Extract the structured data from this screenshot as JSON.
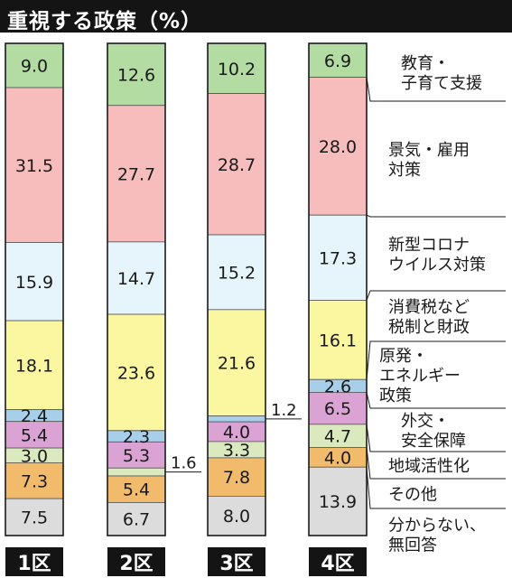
{
  "title": "重視する政策（%）",
  "chart_data": {
    "type": "bar",
    "stacked": true,
    "orientation": "vertical",
    "title": "重視する政策（%）",
    "categories": [
      "1区",
      "2区",
      "3区",
      "4区"
    ],
    "series": [
      {
        "name": "教育・子育て支援",
        "color": "#b3dca3",
        "values": [
          9.0,
          12.6,
          10.2,
          6.9
        ],
        "labels": [
          "9.0",
          "12.6",
          "10.2",
          "6.9"
        ]
      },
      {
        "name": "景気・雇用対策",
        "color": "#f7bcbc",
        "values": [
          31.5,
          27.7,
          28.7,
          28.0
        ],
        "labels": [
          "31.5",
          "27.7",
          "28.7",
          "28.0"
        ]
      },
      {
        "name": "新型コロナウイルス対策",
        "color": "#e6f5fb",
        "values": [
          15.9,
          14.7,
          15.2,
          17.3
        ],
        "labels": [
          "15.9",
          "14.7",
          "15.2",
          "17.3"
        ]
      },
      {
        "name": "消費税など税制と財政",
        "color": "#fbf6a0",
        "values": [
          18.1,
          23.6,
          21.6,
          16.1
        ],
        "labels": [
          "18.1",
          "23.6",
          "21.6",
          "16.1"
        ]
      },
      {
        "name": "原発・エネルギー政策",
        "color": "#a8cfe9",
        "values": [
          2.4,
          2.3,
          1.2,
          2.6
        ],
        "labels": [
          "2.4",
          "2.3",
          "1.2",
          "2.6"
        ]
      },
      {
        "name": "外交・安全保障",
        "color": "#dba3d4",
        "values": [
          5.4,
          5.3,
          4.0,
          6.5
        ],
        "labels": [
          "5.4",
          "5.3",
          "4.0",
          "6.5"
        ]
      },
      {
        "name": "地域活性化",
        "color": "#dbe9bf",
        "values": [
          3.0,
          1.6,
          3.3,
          4.7
        ],
        "labels": [
          "3.0",
          "1.6",
          "3.3",
          "4.7"
        ]
      },
      {
        "name": "その他",
        "color": "#f2bb6c",
        "values": [
          7.3,
          5.4,
          7.8,
          4.0
        ],
        "labels": [
          "7.3",
          "5.4",
          "7.8",
          "4.0"
        ]
      },
      {
        "name": "分からない、無回答",
        "color": "#dcdcdc",
        "values": [
          7.5,
          6.7,
          8.0,
          13.9
        ],
        "labels": [
          "7.5",
          "6.7",
          "8.0",
          "13.9"
        ]
      }
    ],
    "legend_lines": [
      [
        "教育・",
        "子育て支援"
      ],
      [
        "景気・雇用",
        "対策"
      ],
      [
        "新型コロナ",
        "ウイルス対策"
      ],
      [
        "消費税など",
        "税制と財政"
      ],
      [
        "原発・",
        "エネルギー",
        "政策"
      ],
      [
        "外交・",
        "安全保障"
      ],
      [
        "地域活性化"
      ],
      [
        "その他"
      ],
      [
        "分からない、",
        "無回答"
      ]
    ],
    "legend_position": "right"
  }
}
